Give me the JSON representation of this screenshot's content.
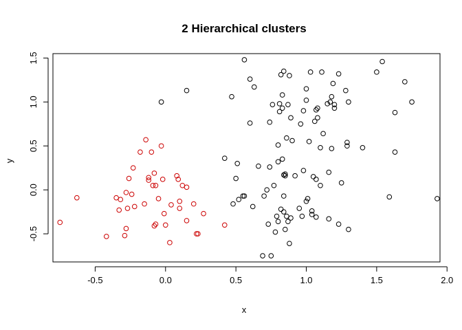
{
  "chart_data": {
    "type": "scatter",
    "title": "2 Hierarchical clusters",
    "xlabel": "x",
    "ylabel": "y",
    "xlim": [
      -0.8,
      1.95
    ],
    "ylim": [
      -0.82,
      1.55
    ],
    "xticks": [
      -0.5,
      0.0,
      0.5,
      1.0,
      1.5,
      2.0
    ],
    "xtick_labels": [
      "-0.5",
      "0.0",
      "0.5",
      "1.0",
      "1.5",
      "2.0"
    ],
    "yticks": [
      -0.5,
      0.0,
      0.5,
      1.0,
      1.5
    ],
    "ytick_labels": [
      "-0.5",
      "0.0",
      "0.5",
      "1.0",
      "1.5"
    ],
    "grid": false,
    "series": [
      {
        "color": "#cc0000",
        "points": [
          [
            -0.75,
            -0.37
          ],
          [
            -0.63,
            -0.09
          ],
          [
            -0.42,
            -0.53
          ],
          [
            -0.35,
            -0.09
          ],
          [
            -0.33,
            -0.23
          ],
          [
            -0.32,
            -0.11
          ],
          [
            -0.29,
            -0.52
          ],
          [
            -0.28,
            -0.44
          ],
          [
            -0.28,
            -0.03
          ],
          [
            -0.27,
            -0.21
          ],
          [
            -0.26,
            0.13
          ],
          [
            -0.24,
            -0.05
          ],
          [
            -0.23,
            0.25
          ],
          [
            -0.22,
            -0.19
          ],
          [
            -0.18,
            0.43
          ],
          [
            -0.15,
            -0.16
          ],
          [
            -0.14,
            0.57
          ],
          [
            -0.12,
            0.11
          ],
          [
            -0.12,
            0.14
          ],
          [
            -0.1,
            0.43
          ],
          [
            -0.09,
            0.05
          ],
          [
            -0.08,
            0.19
          ],
          [
            -0.08,
            -0.41
          ],
          [
            -0.07,
            -0.39
          ],
          [
            -0.07,
            0.05
          ],
          [
            -0.05,
            -0.1
          ],
          [
            -0.03,
            0.5
          ],
          [
            -0.02,
            0.12
          ],
          [
            -0.01,
            -0.27
          ],
          [
            0.0,
            -0.4
          ],
          [
            0.03,
            -0.6
          ],
          [
            0.04,
            -0.17
          ],
          [
            0.08,
            0.16
          ],
          [
            0.09,
            0.12
          ],
          [
            0.1,
            -0.13
          ],
          [
            0.1,
            -0.21
          ],
          [
            0.12,
            0.05
          ],
          [
            0.15,
            0.03
          ],
          [
            0.15,
            -0.35
          ],
          [
            0.2,
            -0.16
          ],
          [
            0.22,
            -0.5
          ],
          [
            0.23,
            -0.5
          ],
          [
            0.27,
            -0.27
          ],
          [
            0.42,
            -0.4
          ]
        ]
      },
      {
        "color": "#000000",
        "points": [
          [
            -0.03,
            1.0
          ],
          [
            0.15,
            1.13
          ],
          [
            0.42,
            0.36
          ],
          [
            0.47,
            1.06
          ],
          [
            0.48,
            -0.16
          ],
          [
            0.5,
            0.13
          ],
          [
            0.51,
            0.3
          ],
          [
            0.52,
            -0.11
          ],
          [
            0.55,
            -0.07
          ],
          [
            0.56,
            -0.07
          ],
          [
            0.56,
            1.48
          ],
          [
            0.6,
            1.26
          ],
          [
            0.6,
            0.76
          ],
          [
            0.62,
            -0.19
          ],
          [
            0.63,
            1.17
          ],
          [
            0.66,
            0.27
          ],
          [
            0.69,
            -0.75
          ],
          [
            0.7,
            -0.07
          ],
          [
            0.72,
            0.0
          ],
          [
            0.73,
            -0.39
          ],
          [
            0.74,
            0.77
          ],
          [
            0.74,
            0.26
          ],
          [
            0.75,
            -0.75
          ],
          [
            0.76,
            0.97
          ],
          [
            0.77,
            0.05
          ],
          [
            0.78,
            -0.48
          ],
          [
            0.79,
            -0.3
          ],
          [
            0.8,
            0.32
          ],
          [
            0.8,
            0.51
          ],
          [
            0.8,
            -0.36
          ],
          [
            0.81,
            0.89
          ],
          [
            0.81,
            0.98
          ],
          [
            0.82,
            1.31
          ],
          [
            0.82,
            -0.22
          ],
          [
            0.83,
            0.93
          ],
          [
            0.83,
            0.35
          ],
          [
            0.83,
            1.08
          ],
          [
            0.84,
            -0.07
          ],
          [
            0.84,
            -0.25
          ],
          [
            0.84,
            0.17
          ],
          [
            0.84,
            1.35
          ],
          [
            0.85,
            0.16
          ],
          [
            0.85,
            0.18
          ],
          [
            0.85,
            -0.45
          ],
          [
            0.86,
            -0.3
          ],
          [
            0.86,
            0.59
          ],
          [
            0.87,
            -0.36
          ],
          [
            0.87,
            0.97
          ],
          [
            0.88,
            1.3
          ],
          [
            0.88,
            -0.61
          ],
          [
            0.89,
            0.82
          ],
          [
            0.89,
            -0.32
          ],
          [
            0.9,
            0.56
          ],
          [
            0.92,
            0.16
          ],
          [
            0.95,
            -0.21
          ],
          [
            0.96,
            0.75
          ],
          [
            0.97,
            -0.3
          ],
          [
            0.98,
            0.22
          ],
          [
            0.98,
            0.9
          ],
          [
            1.0,
            1.02
          ],
          [
            1.0,
            1.15
          ],
          [
            1.0,
            -0.13
          ],
          [
            1.01,
            -0.1
          ],
          [
            1.02,
            0.55
          ],
          [
            1.03,
            1.34
          ],
          [
            1.04,
            -0.28
          ],
          [
            1.04,
            -0.24
          ],
          [
            1.05,
            0.15
          ],
          [
            1.06,
            0.78
          ],
          [
            1.07,
            0.12
          ],
          [
            1.07,
            -0.31
          ],
          [
            1.07,
            0.91
          ],
          [
            1.08,
            0.93
          ],
          [
            1.08,
            0.82
          ],
          [
            1.1,
            0.05
          ],
          [
            1.1,
            0.48
          ],
          [
            1.11,
            1.34
          ],
          [
            1.12,
            0.64
          ],
          [
            1.15,
            0.98
          ],
          [
            1.16,
            0.2
          ],
          [
            1.16,
            -0.33
          ],
          [
            1.17,
            1.0
          ],
          [
            1.18,
            1.06
          ],
          [
            1.18,
            0.47
          ],
          [
            1.19,
            1.21
          ],
          [
            1.2,
            0.97
          ],
          [
            1.2,
            0.93
          ],
          [
            1.23,
            1.32
          ],
          [
            1.23,
            -0.39
          ],
          [
            1.25,
            0.08
          ],
          [
            1.28,
            1.13
          ],
          [
            1.29,
            0.5
          ],
          [
            1.29,
            0.54
          ],
          [
            1.3,
            1.0
          ],
          [
            1.3,
            -0.45
          ],
          [
            1.4,
            0.48
          ],
          [
            1.5,
            1.34
          ],
          [
            1.54,
            1.46
          ],
          [
            1.59,
            -0.08
          ],
          [
            1.63,
            0.88
          ],
          [
            1.63,
            0.43
          ],
          [
            1.7,
            1.23
          ],
          [
            1.75,
            1.0
          ],
          [
            1.93,
            -0.1
          ]
        ]
      }
    ]
  }
}
